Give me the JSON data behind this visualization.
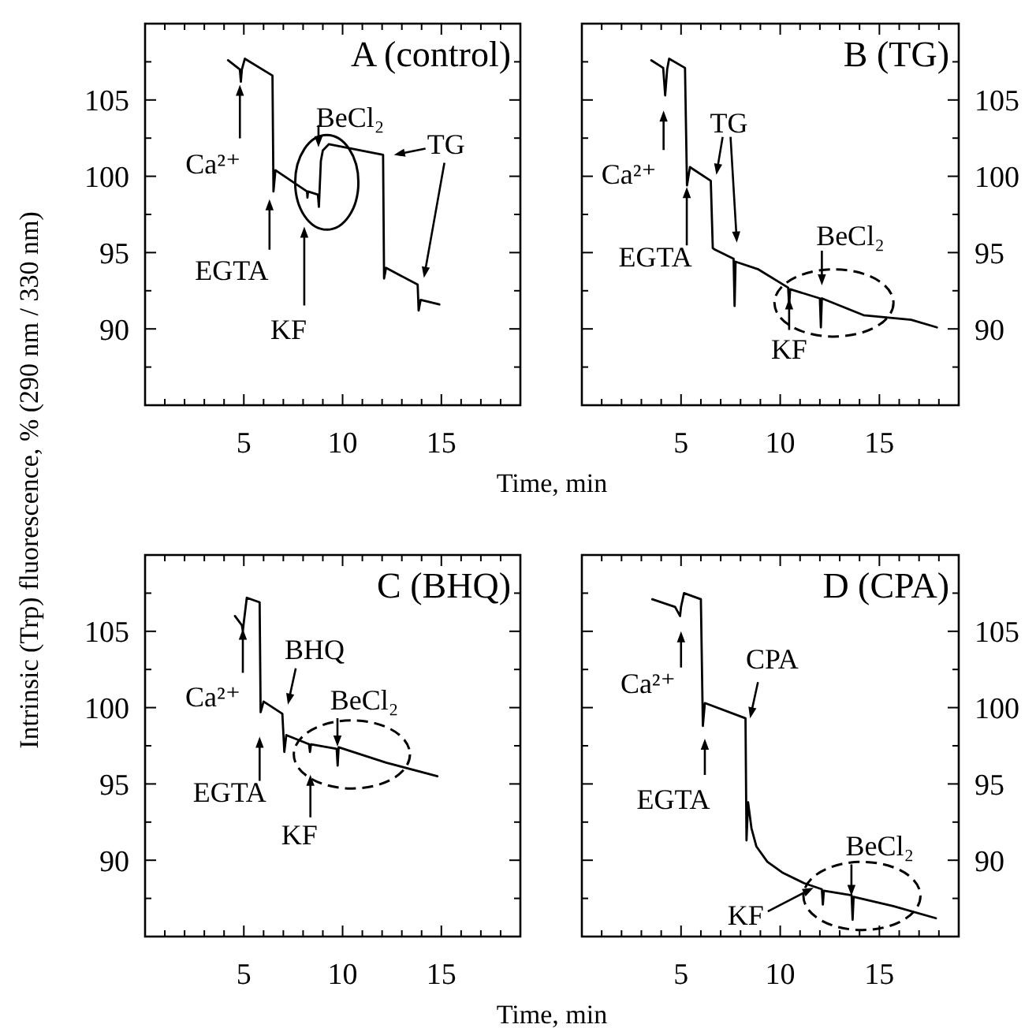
{
  "chart_data": [
    {
      "type": "line",
      "title": "A (control)",
      "xlabel": "Time, min",
      "ylabel": "Intrinsic (Trp) fluorescence, % (290 nm / 330 nm)",
      "xlim": [
        0,
        19
      ],
      "ylim": [
        85,
        110
      ],
      "xticks": [
        {
          "value": 1,
          "label": null
        },
        {
          "value": 2,
          "label": null
        },
        {
          "value": 3,
          "label": null
        },
        {
          "value": 4,
          "label": null
        },
        5,
        {
          "value": 6,
          "label": null
        },
        {
          "value": 7,
          "label": null
        },
        {
          "value": 8,
          "label": null
        },
        {
          "value": 9,
          "label": null
        },
        10,
        {
          "value": 11,
          "label": null
        },
        {
          "value": 12,
          "label": null
        },
        {
          "value": 13,
          "label": null
        },
        {
          "value": 14,
          "label": null
        },
        15,
        {
          "value": 16,
          "label": null
        },
        {
          "value": 17,
          "label": null
        },
        {
          "value": 18,
          "label": null
        }
      ],
      "yticks": [
        {
          "value": 87.5,
          "label": null
        },
        90,
        {
          "value": 92.5,
          "label": null
        },
        95,
        {
          "value": 97.5,
          "label": null
        },
        100,
        {
          "value": 102.5,
          "label": null
        },
        105,
        {
          "value": 107.5,
          "label": null
        }
      ],
      "series": [
        {
          "color": "#000000",
          "x": [
            4.2,
            4.8,
            4.85,
            4.9,
            5.05,
            6.45,
            6.5,
            6.6,
            8.2,
            8.22,
            8.25,
            8.75,
            8.8,
            8.9,
            9.0,
            9.3,
            12.05,
            12.1,
            12.2,
            13.8,
            13.85,
            13.95,
            14.9
          ],
          "values": [
            107.6,
            107.0,
            106.2,
            107.0,
            107.7,
            106.6,
            99.0,
            100.4,
            99.0,
            98.6,
            99.0,
            98.8,
            98.0,
            101.0,
            101.7,
            102.1,
            101.4,
            93.3,
            94.0,
            92.9,
            91.2,
            91.9,
            91.6
          ]
        }
      ],
      "annotations": [
        "Ca²⁺",
        "EGTA",
        "KF",
        "BeCl₂",
        "TG"
      ]
    },
    {
      "type": "line",
      "title": "B (TG)",
      "xlim": [
        0,
        19
      ],
      "ylim": [
        85,
        110
      ],
      "xticks": [
        {
          "value": 1,
          "label": null
        },
        {
          "value": 2,
          "label": null
        },
        {
          "value": 3,
          "label": null
        },
        {
          "value": 4,
          "label": null
        },
        5,
        {
          "value": 6,
          "label": null
        },
        {
          "value": 7,
          "label": null
        },
        {
          "value": 8,
          "label": null
        },
        {
          "value": 9,
          "label": null
        },
        10,
        {
          "value": 11,
          "label": null
        },
        {
          "value": 12,
          "label": null
        },
        {
          "value": 13,
          "label": null
        },
        {
          "value": 14,
          "label": null
        },
        15,
        {
          "value": 16,
          "label": null
        },
        {
          "value": 17,
          "label": null
        },
        {
          "value": 18,
          "label": null
        }
      ],
      "yticks": [
        {
          "value": 87.5,
          "label": null
        },
        90,
        {
          "value": 92.5,
          "label": null
        },
        95,
        {
          "value": 97.5,
          "label": null
        },
        100,
        {
          "value": 102.5,
          "label": null
        },
        105,
        {
          "value": 107.5,
          "label": null
        }
      ],
      "series": [
        {
          "color": "#000000",
          "x": [
            3.5,
            4.1,
            4.2,
            4.3,
            4.4,
            5.2,
            5.3,
            5.45,
            6.5,
            6.6,
            6.7,
            7.65,
            7.7,
            7.75,
            8.9,
            10.4,
            10.45,
            10.5,
            12.0,
            12.05,
            12.1,
            14.2,
            16.6,
            17.9
          ],
          "values": [
            107.6,
            107.1,
            105.3,
            107.0,
            107.7,
            107.1,
            99.4,
            100.6,
            99.7,
            95.3,
            95.2,
            94.6,
            91.5,
            94.4,
            93.9,
            92.7,
            91.5,
            92.6,
            92.0,
            90.1,
            92.0,
            90.9,
            90.6,
            90.1
          ]
        }
      ],
      "annotations": [
        "Ca²⁺",
        "EGTA",
        "TG",
        "KF",
        "BeCl₂"
      ]
    },
    {
      "type": "line",
      "title": "C (BHQ)",
      "xlabel": "Time, min",
      "xlim": [
        0,
        19
      ],
      "ylim": [
        85,
        110
      ],
      "xticks": [
        {
          "value": 1,
          "label": null
        },
        {
          "value": 2,
          "label": null
        },
        {
          "value": 3,
          "label": null
        },
        {
          "value": 4,
          "label": null
        },
        5,
        {
          "value": 6,
          "label": null
        },
        {
          "value": 7,
          "label": null
        },
        {
          "value": 8,
          "label": null
        },
        {
          "value": 9,
          "label": null
        },
        10,
        {
          "value": 11,
          "label": null
        },
        {
          "value": 12,
          "label": null
        },
        {
          "value": 13,
          "label": null
        },
        {
          "value": 14,
          "label": null
        },
        15,
        {
          "value": 16,
          "label": null
        },
        {
          "value": 17,
          "label": null
        },
        {
          "value": 18,
          "label": null
        }
      ],
      "yticks": [
        {
          "value": 87.5,
          "label": null
        },
        90,
        {
          "value": 92.5,
          "label": null
        },
        95,
        {
          "value": 97.5,
          "label": null
        },
        100,
        {
          "value": 102.5,
          "label": null
        },
        105,
        {
          "value": 107.5,
          "label": null
        }
      ],
      "series": [
        {
          "color": "#000000",
          "x": [
            4.55,
            4.9,
            4.95,
            5.0,
            5.15,
            5.8,
            5.85,
            6.0,
            6.95,
            7.05,
            7.15,
            8.3,
            8.35,
            8.4,
            9.7,
            9.75,
            9.8,
            12.2,
            14.8
          ],
          "values": [
            106.0,
            105.4,
            105.0,
            105.6,
            107.2,
            106.9,
            99.7,
            100.4,
            99.6,
            97.1,
            98.2,
            97.6,
            97.1,
            97.6,
            97.3,
            96.2,
            97.4,
            96.4,
            95.5
          ]
        }
      ],
      "annotations": [
        "Ca²⁺",
        "EGTA",
        "BHQ",
        "KF",
        "BeCl₂"
      ]
    },
    {
      "type": "line",
      "title": "D (CPA)",
      "xlim": [
        0,
        19
      ],
      "ylim": [
        85,
        110
      ],
      "xticks": [
        {
          "value": 1,
          "label": null
        },
        {
          "value": 2,
          "label": null
        },
        {
          "value": 3,
          "label": null
        },
        {
          "value": 4,
          "label": null
        },
        5,
        {
          "value": 6,
          "label": null
        },
        {
          "value": 7,
          "label": null
        },
        {
          "value": 8,
          "label": null
        },
        {
          "value": 9,
          "label": null
        },
        10,
        {
          "value": 11,
          "label": null
        },
        {
          "value": 12,
          "label": null
        },
        {
          "value": 13,
          "label": null
        },
        {
          "value": 14,
          "label": null
        },
        15,
        {
          "value": 16,
          "label": null
        },
        {
          "value": 17,
          "label": null
        },
        {
          "value": 18,
          "label": null
        }
      ],
      "yticks": [
        {
          "value": 87.5,
          "label": null
        },
        90,
        {
          "value": 92.5,
          "label": null
        },
        95,
        {
          "value": 97.5,
          "label": null
        },
        100,
        {
          "value": 102.5,
          "label": null
        },
        105,
        {
          "value": 107.5,
          "label": null
        }
      ],
      "series": [
        {
          "color": "#000000",
          "x": [
            3.55,
            4.7,
            4.95,
            5.0,
            5.15,
            6.0,
            6.1,
            6.2,
            8.25,
            8.3,
            8.38,
            8.55,
            8.8,
            9.35,
            10.1,
            11.2,
            12.1,
            12.15,
            12.2,
            13.6,
            13.65,
            13.7,
            15.7,
            17.85
          ],
          "values": [
            107.1,
            106.6,
            106.0,
            106.6,
            107.5,
            107.1,
            98.8,
            100.3,
            99.3,
            91.3,
            93.8,
            92.1,
            90.9,
            89.9,
            89.2,
            88.5,
            88.1,
            87.1,
            88.0,
            87.7,
            86.1,
            87.6,
            87.0,
            86.2
          ]
        }
      ],
      "annotations": [
        "Ca²⁺",
        "EGTA",
        "CPA",
        "KF",
        "BeCl₂"
      ]
    }
  ]
}
